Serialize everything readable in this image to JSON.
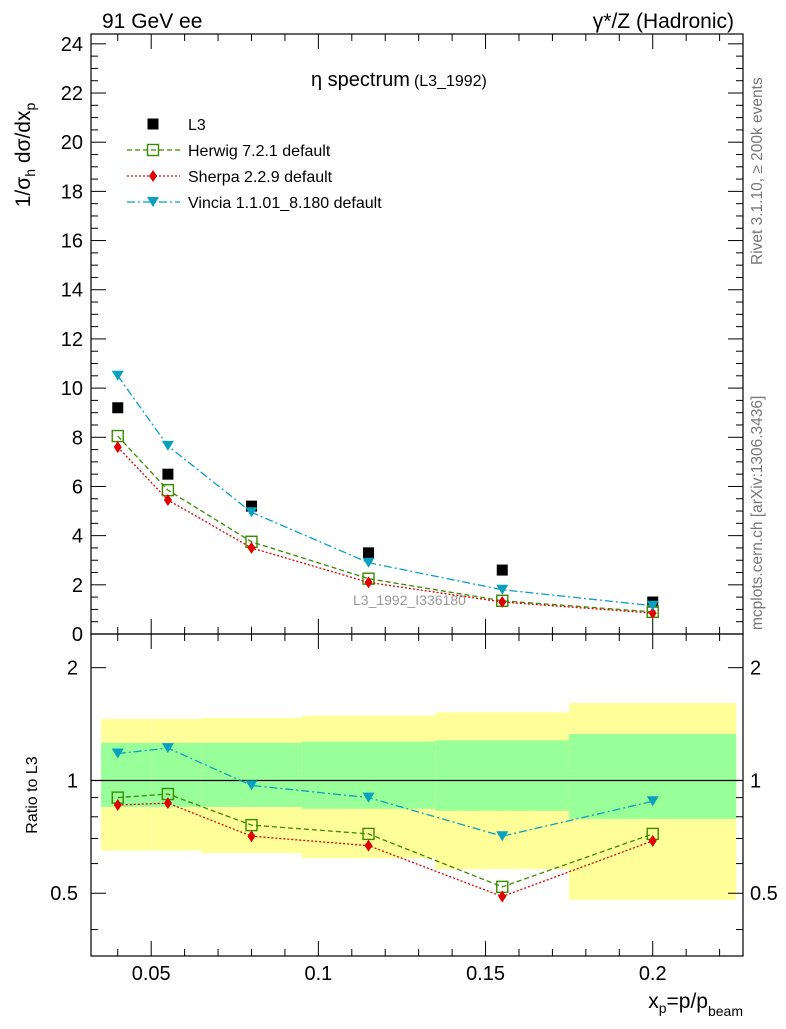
{
  "header": {
    "left": "91 GeV ee",
    "right_main": "γ*/Z (Hadronic)"
  },
  "side_text": {
    "top": "Rivet 3.1.10, ≥ 200k events",
    "bottom": "mcplots.cern.ch [arXiv:1306.3436]"
  },
  "colors": {
    "L3": "#000000",
    "Herwig": "#3a8a00",
    "Sherpa": "#e00000",
    "Vincia": "#0aa0c0",
    "band_outer": "#ffff99",
    "band_inner": "#99ff99"
  },
  "chart_data": [
    {
      "type": "scatter",
      "title": "η spectrum",
      "title_suffix": "(L3_1992)",
      "ylabel": "1/σh dσ/dxp",
      "xlim": [
        0.032,
        0.227
      ],
      "ylim": [
        0,
        24.4
      ],
      "yticks": [
        0,
        2,
        4,
        6,
        8,
        10,
        12,
        14,
        16,
        18,
        20,
        22,
        24
      ],
      "watermark": "L3_1992_I336180",
      "legend_position": "top-left",
      "series": [
        {
          "name": "L3",
          "key": "L3",
          "marker": "square-filled",
          "line": "none",
          "x": [
            0.04,
            0.055,
            0.08,
            0.115,
            0.155,
            0.2
          ],
          "y": [
            9.2,
            6.5,
            5.2,
            3.3,
            2.6,
            1.3
          ]
        },
        {
          "name": "Herwig 7.2.1 default",
          "key": "Herwig",
          "marker": "square-open",
          "line": "dashed",
          "x": [
            0.04,
            0.055,
            0.08,
            0.115,
            0.155,
            0.2
          ],
          "y": [
            8.05,
            5.85,
            3.75,
            2.25,
            1.35,
            0.9
          ]
        },
        {
          "name": "Sherpa 2.2.9 default",
          "key": "Sherpa",
          "marker": "diamond",
          "line": "dotted",
          "x": [
            0.04,
            0.055,
            0.08,
            0.115,
            0.155,
            0.2
          ],
          "y": [
            7.6,
            5.45,
            3.5,
            2.1,
            1.3,
            0.85
          ]
        },
        {
          "name": "Vincia 1.1.01_8.180 default",
          "key": "Vincia",
          "marker": "triangle-down",
          "line": "dashdot",
          "x": [
            0.04,
            0.055,
            0.08,
            0.115,
            0.155,
            0.2
          ],
          "y": [
            10.5,
            7.65,
            4.95,
            2.9,
            1.8,
            1.15
          ]
        }
      ]
    },
    {
      "type": "scatter",
      "ylabel": "Ratio to L3",
      "xlabel": "xp=p/pbeam",
      "xlim": [
        0.032,
        0.227
      ],
      "ylim": [
        0.34,
        2.46
      ],
      "yticks": [
        0.5,
        1,
        2
      ],
      "xticks": [
        0.05,
        0.1,
        0.15,
        0.2
      ],
      "bands": [
        {
          "x0": 0.035,
          "x1": 0.05,
          "outer": [
            0.65,
            1.46
          ],
          "inner": [
            0.85,
            1.26
          ]
        },
        {
          "x0": 0.05,
          "x1": 0.065,
          "outer": [
            0.65,
            1.46
          ],
          "inner": [
            0.85,
            1.26
          ]
        },
        {
          "x0": 0.065,
          "x1": 0.095,
          "outer": [
            0.64,
            1.47
          ],
          "inner": [
            0.85,
            1.26
          ]
        },
        {
          "x0": 0.095,
          "x1": 0.135,
          "outer": [
            0.62,
            1.49
          ],
          "inner": [
            0.84,
            1.27
          ]
        },
        {
          "x0": 0.135,
          "x1": 0.175,
          "outer": [
            0.58,
            1.52
          ],
          "inner": [
            0.83,
            1.28
          ]
        },
        {
          "x0": 0.175,
          "x1": 0.225,
          "outer": [
            0.48,
            1.61
          ],
          "inner": [
            0.79,
            1.33
          ]
        }
      ],
      "series": [
        {
          "key": "Herwig",
          "marker": "square-open",
          "line": "dashed",
          "x": [
            0.04,
            0.055,
            0.08,
            0.115,
            0.155,
            0.2
          ],
          "y": [
            0.9,
            0.92,
            0.76,
            0.72,
            0.52,
            0.72
          ]
        },
        {
          "key": "Sherpa",
          "marker": "diamond",
          "line": "dotted",
          "x": [
            0.04,
            0.055,
            0.08,
            0.115,
            0.155,
            0.2
          ],
          "y": [
            0.86,
            0.87,
            0.71,
            0.67,
            0.49,
            0.69
          ]
        },
        {
          "key": "Vincia",
          "marker": "triangle-down",
          "line": "dashdot",
          "x": [
            0.04,
            0.055,
            0.08,
            0.115,
            0.155,
            0.2
          ],
          "y": [
            1.18,
            1.22,
            0.97,
            0.9,
            0.71,
            0.88
          ]
        }
      ]
    }
  ]
}
